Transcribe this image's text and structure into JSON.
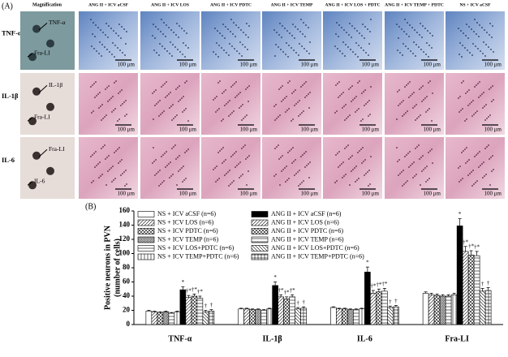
{
  "panel_a": {
    "label": "(A)",
    "magnification": "Magnification",
    "columns": [
      "ANG II + ICV aCSF",
      "ANG II + ICV LOS",
      "ANG II + ICV PDTC",
      "ANG II + ICV TEMP",
      "ANG II + ICV LOS + PDTC",
      "ANG II + ICV TEMP + PDTC",
      "NS + ICV aCSF"
    ],
    "rows": [
      {
        "label": "TNF-α",
        "callouts": [
          "TNF-α",
          "Fra-LI"
        ]
      },
      {
        "label": "IL-1β",
        "callouts": [
          "IL-1β",
          "Fra-LI"
        ]
      },
      {
        "label": "IL-6",
        "callouts": [
          "Fra-LI",
          "IL-6"
        ]
      }
    ],
    "scale_bar": "100 μm"
  },
  "chart_data": {
    "type": "bar",
    "panel_label": "(B)",
    "ylabel": [
      "Positive neurons in PVN",
      "(number of cells)"
    ],
    "categories": [
      "TNF-α",
      "IL-1β",
      "IL-6",
      "Fra-LI"
    ],
    "ylim": [
      0,
      160
    ],
    "yticks": [
      0,
      20,
      40,
      60,
      80,
      100,
      120,
      140,
      160
    ],
    "series": [
      {
        "name": "NS + ICV aCSF (n=6)",
        "color": "#ffffff",
        "pattern": "none",
        "values": [
          19,
          22,
          24,
          44
        ],
        "errors": [
          1,
          1,
          1,
          2
        ]
      },
      {
        "name": "NS + ICV LOS (n=6)",
        "color": "#ffffff",
        "pattern": "diag",
        "values": [
          18,
          22,
          22,
          42
        ],
        "errors": [
          1,
          1,
          1,
          2
        ]
      },
      {
        "name": "NS + ICV PDTC (n=6)",
        "color": "#ffffff",
        "pattern": "cross",
        "values": [
          17,
          21,
          22,
          41
        ],
        "errors": [
          1,
          1,
          1,
          2
        ]
      },
      {
        "name": "NS + ICV TEMP (n=6)",
        "color": "#ffffff",
        "pattern": "diag-dense",
        "values": [
          18,
          21,
          21,
          40
        ],
        "errors": [
          1,
          1,
          1,
          2
        ]
      },
      {
        "name": "NS + ICV LOS+PDTC (n=6)",
        "color": "#ffffff",
        "pattern": "horiz",
        "values": [
          16,
          20,
          21,
          40
        ],
        "errors": [
          1,
          1,
          1,
          2
        ]
      },
      {
        "name": "NS + ICV TEMP+PDTC (n=6)",
        "color": "#ffffff",
        "pattern": "vert",
        "values": [
          18,
          22,
          22,
          42
        ],
        "errors": [
          1,
          1,
          1,
          2
        ]
      },
      {
        "name": "ANG II + ICV aCSF (n=6)",
        "color": "#000000",
        "pattern": "none",
        "values": [
          49,
          55,
          74,
          139
        ],
        "errors": [
          4,
          5,
          7,
          10
        ],
        "marker": "*"
      },
      {
        "name": "ANG II + ICV LOS (n=6)",
        "color": "#ffffff",
        "pattern": "diag",
        "values": [
          38,
          39,
          44,
          103
        ],
        "errors": [
          3,
          3,
          4,
          7
        ],
        "marker": "†*"
      },
      {
        "name": "ANG II + ICV PDTC (n=6)",
        "color": "#ffffff",
        "pattern": "cross",
        "values": [
          40,
          36,
          46,
          98
        ],
        "errors": [
          3,
          3,
          4,
          6
        ],
        "marker": "†*"
      },
      {
        "name": "ANG II + ICV TEMP (n=6)",
        "color": "#ffffff",
        "pattern": "horiz",
        "values": [
          37,
          39,
          47,
          97
        ],
        "errors": [
          3,
          3,
          4,
          6
        ],
        "marker": "†*"
      },
      {
        "name": "ANG II + ICV LOS+PDTC (n=6)",
        "color": "#ffffff",
        "pattern": "diag-rev",
        "values": [
          18,
          22,
          24,
          47
        ],
        "errors": [
          2,
          2,
          2,
          4
        ],
        "marker": "†"
      },
      {
        "name": "ANG II + ICV TEMP+PDTC (n=6)",
        "color": "#ffffff",
        "pattern": "check",
        "values": [
          19,
          23,
          25,
          48
        ],
        "errors": [
          2,
          2,
          2,
          4
        ],
        "marker": "†"
      }
    ]
  }
}
